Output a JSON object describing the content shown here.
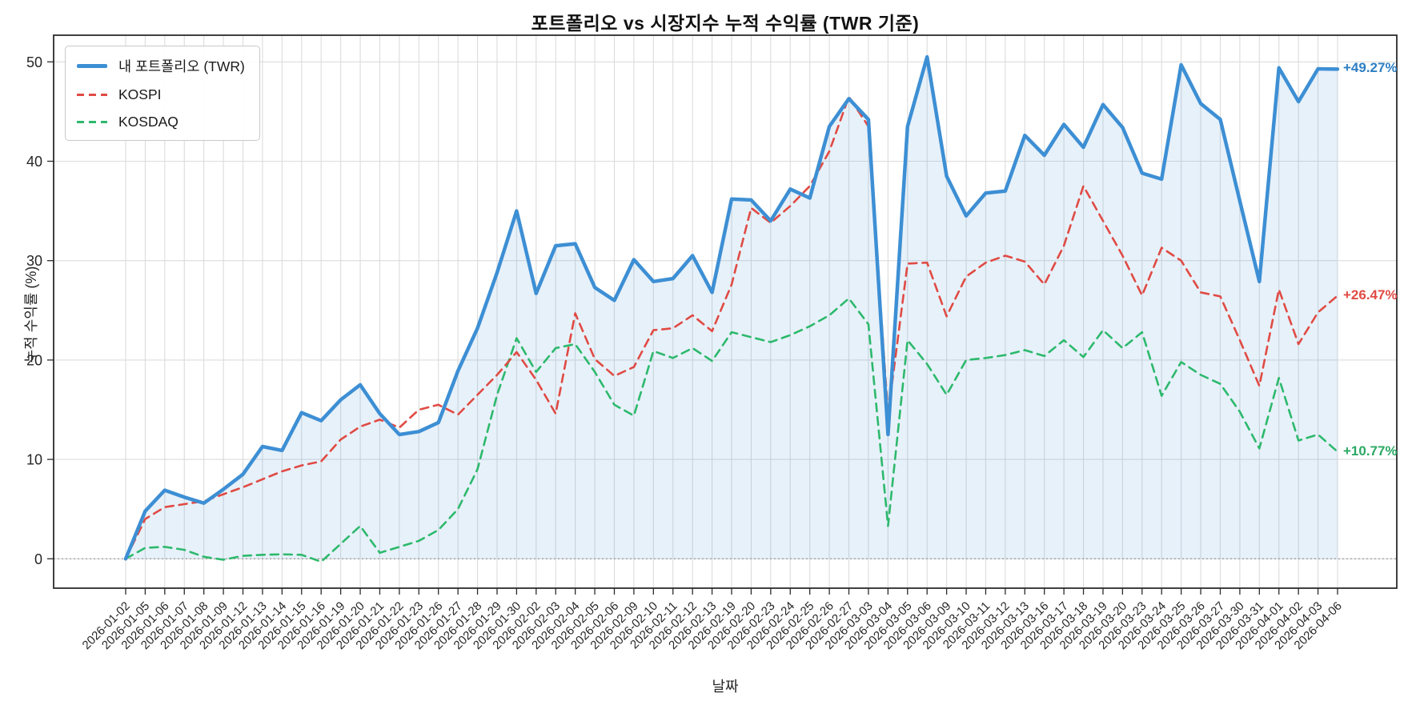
{
  "chart_data": {
    "type": "line",
    "title": "포트폴리오 vs 시장지수 누적 수익률 (TWR 기준)",
    "xlabel": "날짜",
    "ylabel": "누적 수익률 (%)",
    "grid": true,
    "legend_position": "upper-left",
    "zero_line": true,
    "ylim": [
      -3,
      52.7
    ],
    "yticks": [
      0,
      10,
      20,
      30,
      40,
      50
    ],
    "x": [
      "2026-01-02",
      "2026-01-05",
      "2026-01-06",
      "2026-01-07",
      "2026-01-08",
      "2026-01-09",
      "2026-01-12",
      "2026-01-13",
      "2026-01-14",
      "2026-01-15",
      "2026-01-16",
      "2026-01-19",
      "2026-01-20",
      "2026-01-21",
      "2026-01-22",
      "2026-01-23",
      "2026-01-26",
      "2026-01-27",
      "2026-01-28",
      "2026-01-29",
      "2026-01-30",
      "2026-02-02",
      "2026-02-03",
      "2026-02-04",
      "2026-02-05",
      "2026-02-06",
      "2026-02-09",
      "2026-02-10",
      "2026-02-11",
      "2026-02-12",
      "2026-02-13",
      "2026-02-19",
      "2026-02-20",
      "2026-02-23",
      "2026-02-24",
      "2026-02-25",
      "2026-02-26",
      "2026-02-27",
      "2026-03-03",
      "2026-03-04",
      "2026-03-05",
      "2026-03-06",
      "2026-03-09",
      "2026-03-10",
      "2026-03-11",
      "2026-03-12",
      "2026-03-13",
      "2026-03-16",
      "2026-03-17",
      "2026-03-18",
      "2026-03-19",
      "2026-03-20",
      "2026-03-23",
      "2026-03-24",
      "2026-03-25",
      "2026-03-26",
      "2026-03-27",
      "2026-03-30",
      "2026-03-31",
      "2026-04-01",
      "2026-04-02",
      "2026-04-03",
      "2026-04-06"
    ],
    "series": [
      {
        "name": "내 포트폴리오 (TWR)",
        "color": "#3d8fd4",
        "style": "solid",
        "width": 4.5,
        "fill_under": true,
        "end_label": "+49.27%",
        "end_label_color": "#2e7fc4",
        "values": [
          0,
          4.8,
          6.9,
          6.2,
          5.6,
          7.0,
          8.5,
          11.3,
          10.9,
          14.7,
          13.9,
          16.0,
          17.5,
          14.6,
          12.5,
          12.8,
          13.7,
          18.9,
          23.2,
          28.8,
          35.0,
          26.7,
          31.5,
          31.7,
          27.3,
          26.0,
          30.1,
          27.9,
          28.2,
          30.5,
          26.8,
          36.2,
          36.1,
          34.0,
          37.2,
          36.3,
          43.5,
          46.3,
          44.2,
          12.5,
          43.5,
          50.5,
          38.5,
          34.5,
          36.8,
          37.0,
          42.6,
          40.6,
          43.7,
          41.4,
          45.7,
          43.4,
          38.8,
          38.2,
          49.7,
          45.8,
          44.2,
          36.0,
          27.9,
          49.4,
          46.0,
          49.3,
          49.27
        ]
      },
      {
        "name": "KOSPI",
        "color": "#e04b44",
        "style": "dashed",
        "width": 2.6,
        "fill_under": false,
        "end_label": "+26.47%",
        "end_label_color": "#e04b44",
        "values": [
          0,
          4.0,
          5.2,
          5.5,
          5.8,
          6.5,
          7.2,
          8.0,
          8.8,
          9.4,
          9.8,
          12.0,
          13.3,
          14.0,
          13.2,
          15.0,
          15.5,
          14.5,
          16.5,
          18.5,
          20.8,
          18.0,
          14.6,
          24.7,
          20.1,
          18.4,
          19.3,
          23.0,
          23.2,
          24.5,
          22.9,
          27.6,
          35.3,
          33.8,
          35.5,
          37.5,
          41.0,
          46.5,
          43.5,
          14.5,
          29.7,
          29.8,
          24.4,
          28.4,
          29.8,
          30.5,
          29.9,
          27.6,
          31.5,
          37.5,
          34.0,
          30.5,
          26.5,
          31.3,
          30.0,
          26.8,
          26.4,
          22.0,
          17.4,
          27.1,
          21.6,
          24.8,
          26.47
        ]
      },
      {
        "name": "KOSDAQ",
        "color": "#2db96c",
        "style": "dashed",
        "width": 2.6,
        "fill_under": false,
        "end_label": "+10.77%",
        "end_label_color": "#2aa963",
        "values": [
          0,
          1.1,
          1.2,
          0.9,
          0.2,
          -0.1,
          0.3,
          0.4,
          0.45,
          0.4,
          -0.3,
          1.5,
          3.3,
          0.6,
          1.2,
          1.8,
          2.9,
          5.0,
          9.0,
          16.5,
          22.2,
          18.8,
          21.2,
          21.6,
          18.8,
          15.5,
          14.4,
          20.9,
          20.2,
          21.2,
          19.9,
          22.8,
          22.3,
          21.8,
          22.5,
          23.4,
          24.5,
          26.2,
          23.6,
          3.3,
          22.0,
          19.6,
          16.5,
          20.0,
          20.2,
          20.5,
          21.0,
          20.4,
          22.0,
          20.3,
          23.0,
          21.2,
          22.8,
          16.4,
          19.8,
          18.5,
          17.6,
          14.8,
          11.1,
          18.2,
          11.9,
          12.5,
          10.77
        ]
      }
    ],
    "fill_color": "rgba(61,143,212,0.12)",
    "colors": {
      "grid": "#dcdcdc",
      "spine": "#2b2b2b",
      "tick_label": "#262626",
      "zero_line": "#8a8a8a",
      "background": "#ffffff"
    }
  }
}
